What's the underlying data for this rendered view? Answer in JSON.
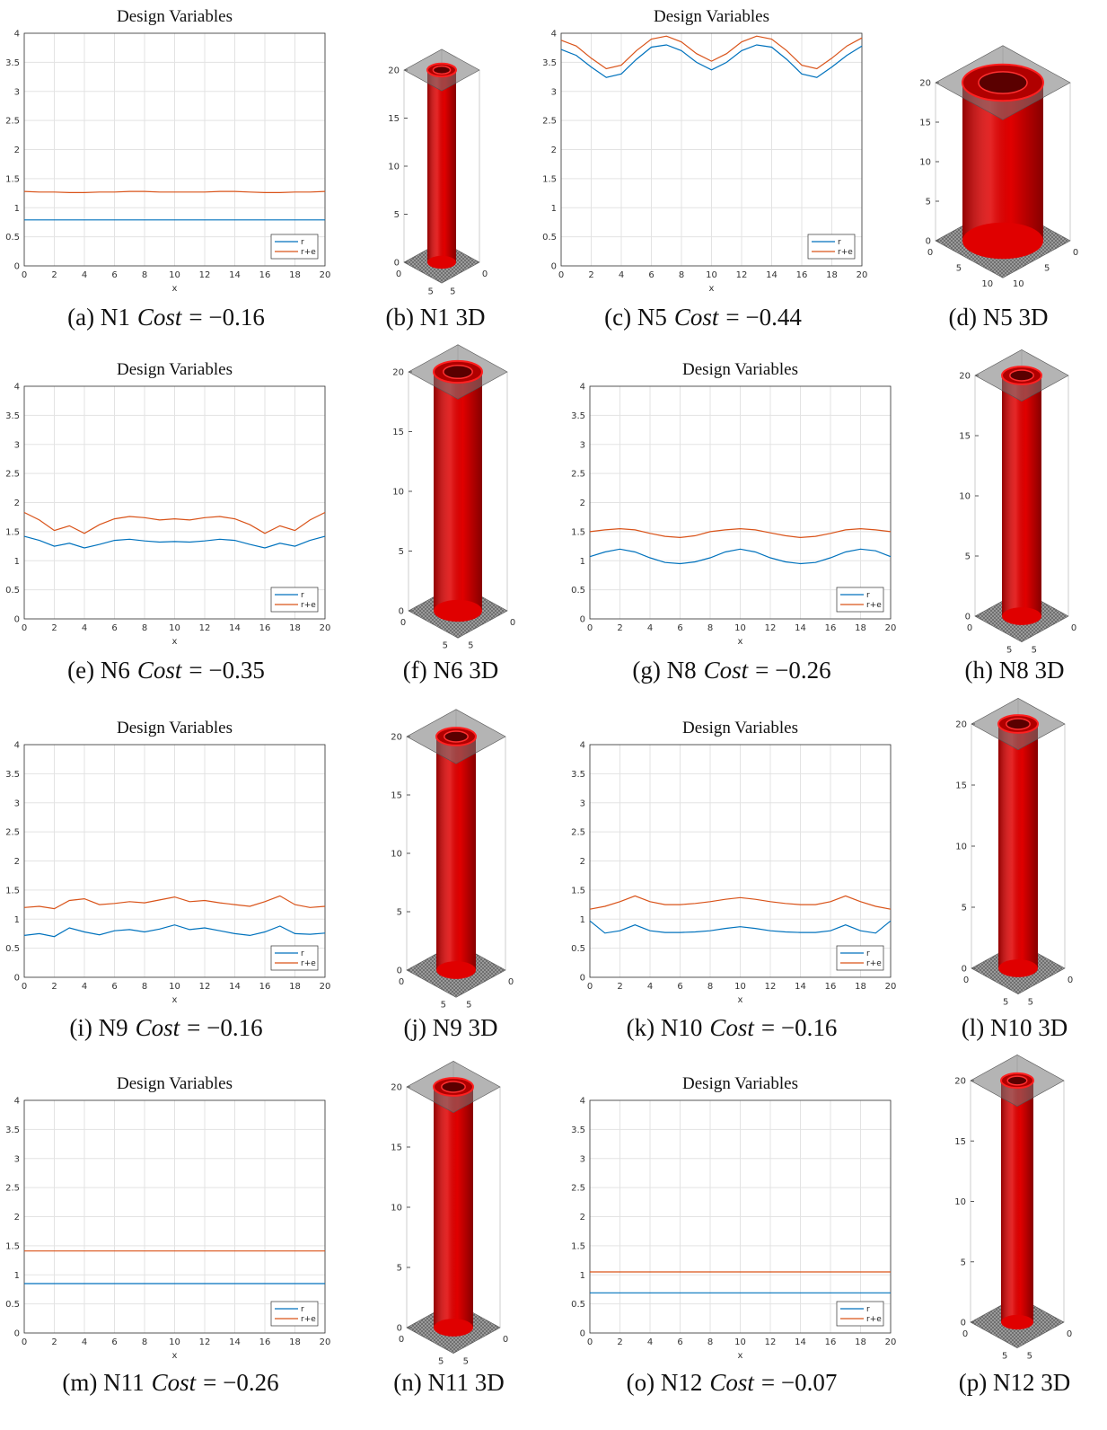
{
  "chart_data": [
    {
      "type": "line",
      "title": "Design Variables",
      "xlabel": "x",
      "caption_prefix": "(a) N1",
      "caption_var": "Cost",
      "caption_value": "= −0.16",
      "x": [
        0,
        1,
        2,
        3,
        4,
        5,
        6,
        7,
        8,
        9,
        10,
        11,
        12,
        13,
        14,
        15,
        16,
        17,
        18,
        19,
        20
      ],
      "series": [
        {
          "name": "r",
          "color": "#0072bd",
          "values": [
            0.79,
            0.79,
            0.79,
            0.79,
            0.79,
            0.79,
            0.79,
            0.79,
            0.79,
            0.79,
            0.79,
            0.79,
            0.79,
            0.79,
            0.79,
            0.79,
            0.79,
            0.79,
            0.79,
            0.79,
            0.79
          ]
        },
        {
          "name": "r+e",
          "color": "#d95319",
          "values": [
            1.28,
            1.27,
            1.27,
            1.26,
            1.26,
            1.27,
            1.27,
            1.28,
            1.28,
            1.27,
            1.27,
            1.27,
            1.27,
            1.28,
            1.28,
            1.27,
            1.26,
            1.26,
            1.27,
            1.27,
            1.28
          ]
        }
      ],
      "xlim": [
        0,
        20
      ],
      "ylim": [
        0,
        4
      ],
      "xticks": [
        0,
        2,
        4,
        6,
        8,
        10,
        12,
        14,
        16,
        18,
        20
      ],
      "yticks": [
        0,
        0.5,
        1,
        1.5,
        2,
        2.5,
        3,
        3.5,
        4
      ],
      "grid": true,
      "legend": "lower right"
    },
    {
      "type": "line",
      "title": "Design Variables",
      "xlabel": "x",
      "caption_prefix": "(c) N5",
      "caption_var": "Cost",
      "caption_value": "= −0.44",
      "x": [
        0,
        1,
        2,
        3,
        4,
        5,
        6,
        7,
        8,
        9,
        10,
        11,
        12,
        13,
        14,
        15,
        16,
        17,
        18,
        19,
        20
      ],
      "series": [
        {
          "name": "r",
          "color": "#0072bd",
          "values": [
            3.72,
            3.62,
            3.42,
            3.24,
            3.3,
            3.55,
            3.76,
            3.8,
            3.7,
            3.5,
            3.37,
            3.5,
            3.7,
            3.8,
            3.76,
            3.55,
            3.3,
            3.24,
            3.42,
            3.62,
            3.78
          ]
        },
        {
          "name": "r+e",
          "color": "#d95319",
          "values": [
            3.88,
            3.78,
            3.57,
            3.39,
            3.45,
            3.7,
            3.9,
            3.95,
            3.85,
            3.65,
            3.52,
            3.65,
            3.85,
            3.95,
            3.9,
            3.7,
            3.45,
            3.39,
            3.57,
            3.78,
            3.92
          ]
        }
      ],
      "xlim": [
        0,
        20
      ],
      "ylim": [
        0,
        4
      ],
      "xticks": [
        0,
        2,
        4,
        6,
        8,
        10,
        12,
        14,
        16,
        18,
        20
      ],
      "yticks": [
        0,
        0.5,
        1,
        1.5,
        2,
        2.5,
        3,
        3.5,
        4
      ],
      "grid": true,
      "legend": "lower right"
    },
    {
      "type": "line",
      "title": "Design Variables",
      "xlabel": "x",
      "caption_prefix": "(e) N6",
      "caption_var": "Cost",
      "caption_value": "= −0.35",
      "x": [
        0,
        1,
        2,
        3,
        4,
        5,
        6,
        7,
        8,
        9,
        10,
        11,
        12,
        13,
        14,
        15,
        16,
        17,
        18,
        19,
        20
      ],
      "series": [
        {
          "name": "r",
          "color": "#0072bd",
          "values": [
            1.42,
            1.35,
            1.25,
            1.3,
            1.22,
            1.28,
            1.35,
            1.37,
            1.34,
            1.32,
            1.33,
            1.32,
            1.34,
            1.37,
            1.35,
            1.28,
            1.22,
            1.3,
            1.25,
            1.35,
            1.42
          ]
        },
        {
          "name": "r+e",
          "color": "#d95319",
          "values": [
            1.83,
            1.7,
            1.52,
            1.6,
            1.47,
            1.62,
            1.72,
            1.76,
            1.74,
            1.7,
            1.72,
            1.7,
            1.74,
            1.76,
            1.72,
            1.62,
            1.47,
            1.6,
            1.52,
            1.7,
            1.83
          ]
        }
      ],
      "xlim": [
        0,
        20
      ],
      "ylim": [
        0,
        4
      ],
      "xticks": [
        0,
        2,
        4,
        6,
        8,
        10,
        12,
        14,
        16,
        18,
        20
      ],
      "yticks": [
        0,
        0.5,
        1,
        1.5,
        2,
        2.5,
        3,
        3.5,
        4
      ],
      "grid": true,
      "legend": "lower right"
    },
    {
      "type": "line",
      "title": "Design Variables",
      "xlabel": "x",
      "caption_prefix": "(g) N8",
      "caption_var": "Cost",
      "caption_value": "= −0.26",
      "x": [
        0,
        1,
        2,
        3,
        4,
        5,
        6,
        7,
        8,
        9,
        10,
        11,
        12,
        13,
        14,
        15,
        16,
        17,
        18,
        19,
        20
      ],
      "series": [
        {
          "name": "r",
          "color": "#0072bd",
          "values": [
            1.07,
            1.15,
            1.2,
            1.15,
            1.05,
            0.97,
            0.95,
            0.98,
            1.05,
            1.15,
            1.2,
            1.15,
            1.05,
            0.98,
            0.95,
            0.97,
            1.05,
            1.15,
            1.2,
            1.17,
            1.07
          ]
        },
        {
          "name": "r+e",
          "color": "#d95319",
          "values": [
            1.5,
            1.53,
            1.55,
            1.53,
            1.47,
            1.42,
            1.4,
            1.43,
            1.5,
            1.53,
            1.55,
            1.53,
            1.48,
            1.43,
            1.4,
            1.42,
            1.47,
            1.53,
            1.55,
            1.53,
            1.5
          ]
        }
      ],
      "xlim": [
        0,
        20
      ],
      "ylim": [
        0,
        4
      ],
      "xticks": [
        0,
        2,
        4,
        6,
        8,
        10,
        12,
        14,
        16,
        18,
        20
      ],
      "yticks": [
        0,
        0.5,
        1,
        1.5,
        2,
        2.5,
        3,
        3.5,
        4
      ],
      "grid": true,
      "legend": "lower right"
    },
    {
      "type": "line",
      "title": "Design Variables",
      "xlabel": "x",
      "caption_prefix": "(i) N9",
      "caption_var": "Cost",
      "caption_value": "= −0.16",
      "x": [
        0,
        1,
        2,
        3,
        4,
        5,
        6,
        7,
        8,
        9,
        10,
        11,
        12,
        13,
        14,
        15,
        16,
        17,
        18,
        19,
        20
      ],
      "series": [
        {
          "name": "r",
          "color": "#0072bd",
          "values": [
            0.72,
            0.75,
            0.7,
            0.85,
            0.78,
            0.73,
            0.8,
            0.82,
            0.78,
            0.83,
            0.9,
            0.82,
            0.85,
            0.8,
            0.75,
            0.72,
            0.78,
            0.88,
            0.75,
            0.74,
            0.76
          ]
        },
        {
          "name": "r+e",
          "color": "#d95319",
          "values": [
            1.2,
            1.22,
            1.18,
            1.32,
            1.35,
            1.25,
            1.27,
            1.3,
            1.28,
            1.33,
            1.38,
            1.3,
            1.32,
            1.28,
            1.25,
            1.22,
            1.3,
            1.4,
            1.25,
            1.2,
            1.22
          ]
        }
      ],
      "xlim": [
        0,
        20
      ],
      "ylim": [
        0,
        4
      ],
      "xticks": [
        0,
        2,
        4,
        6,
        8,
        10,
        12,
        14,
        16,
        18,
        20
      ],
      "yticks": [
        0,
        0.5,
        1,
        1.5,
        2,
        2.5,
        3,
        3.5,
        4
      ],
      "grid": true,
      "legend": "lower right"
    },
    {
      "type": "line",
      "title": "Design Variables",
      "xlabel": "x",
      "caption_prefix": "(k) N10",
      "caption_var": "Cost",
      "caption_value": "= −0.16",
      "x": [
        0,
        1,
        2,
        3,
        4,
        5,
        6,
        7,
        8,
        9,
        10,
        11,
        12,
        13,
        14,
        15,
        16,
        17,
        18,
        19,
        20
      ],
      "series": [
        {
          "name": "r",
          "color": "#0072bd",
          "values": [
            0.97,
            0.76,
            0.8,
            0.9,
            0.8,
            0.77,
            0.77,
            0.78,
            0.8,
            0.84,
            0.87,
            0.84,
            0.8,
            0.78,
            0.77,
            0.77,
            0.8,
            0.9,
            0.8,
            0.76,
            0.97
          ]
        },
        {
          "name": "r+e",
          "color": "#d95319",
          "values": [
            1.17,
            1.22,
            1.3,
            1.4,
            1.3,
            1.25,
            1.25,
            1.27,
            1.3,
            1.34,
            1.37,
            1.34,
            1.3,
            1.27,
            1.25,
            1.25,
            1.3,
            1.4,
            1.3,
            1.22,
            1.17
          ]
        }
      ],
      "xlim": [
        0,
        20
      ],
      "ylim": [
        0,
        4
      ],
      "xticks": [
        0,
        2,
        4,
        6,
        8,
        10,
        12,
        14,
        16,
        18,
        20
      ],
      "yticks": [
        0,
        0.5,
        1,
        1.5,
        2,
        2.5,
        3,
        3.5,
        4
      ],
      "grid": true,
      "legend": "lower right"
    },
    {
      "type": "line",
      "title": "Design Variables",
      "xlabel": "x",
      "caption_prefix": "(m) N11",
      "caption_var": "Cost",
      "caption_value": "= −0.26",
      "x": [
        0,
        1,
        2,
        3,
        4,
        5,
        6,
        7,
        8,
        9,
        10,
        11,
        12,
        13,
        14,
        15,
        16,
        17,
        18,
        19,
        20
      ],
      "series": [
        {
          "name": "r",
          "color": "#0072bd",
          "values": [
            0.85,
            0.85,
            0.85,
            0.85,
            0.85,
            0.85,
            0.85,
            0.85,
            0.85,
            0.85,
            0.85,
            0.85,
            0.85,
            0.85,
            0.85,
            0.85,
            0.85,
            0.85,
            0.85,
            0.85,
            0.85
          ]
        },
        {
          "name": "r+e",
          "color": "#d95319",
          "values": [
            1.41,
            1.41,
            1.41,
            1.41,
            1.41,
            1.41,
            1.41,
            1.41,
            1.41,
            1.41,
            1.41,
            1.41,
            1.41,
            1.41,
            1.41,
            1.41,
            1.41,
            1.41,
            1.41,
            1.41,
            1.41
          ]
        }
      ],
      "xlim": [
        0,
        20
      ],
      "ylim": [
        0,
        4
      ],
      "xticks": [
        0,
        2,
        4,
        6,
        8,
        10,
        12,
        14,
        16,
        18,
        20
      ],
      "yticks": [
        0,
        0.5,
        1,
        1.5,
        2,
        2.5,
        3,
        3.5,
        4
      ],
      "grid": true,
      "legend": "lower right"
    },
    {
      "type": "line",
      "title": "Design Variables",
      "xlabel": "x",
      "caption_prefix": "(o) N12",
      "caption_var": "Cost",
      "caption_value": "= −0.07",
      "x": [
        0,
        1,
        2,
        3,
        4,
        5,
        6,
        7,
        8,
        9,
        10,
        11,
        12,
        13,
        14,
        15,
        16,
        17,
        18,
        19,
        20
      ],
      "series": [
        {
          "name": "r",
          "color": "#0072bd",
          "values": [
            0.69,
            0.69,
            0.69,
            0.69,
            0.69,
            0.69,
            0.69,
            0.69,
            0.69,
            0.69,
            0.69,
            0.69,
            0.69,
            0.69,
            0.69,
            0.69,
            0.69,
            0.69,
            0.69,
            0.69,
            0.69
          ]
        },
        {
          "name": "r+e",
          "color": "#d95319",
          "values": [
            1.05,
            1.05,
            1.05,
            1.05,
            1.05,
            1.05,
            1.05,
            1.05,
            1.05,
            1.05,
            1.05,
            1.05,
            1.05,
            1.05,
            1.05,
            1.05,
            1.05,
            1.05,
            1.05,
            1.05,
            1.05
          ]
        }
      ],
      "xlim": [
        0,
        20
      ],
      "ylim": [
        0,
        4
      ],
      "xticks": [
        0,
        2,
        4,
        6,
        8,
        10,
        12,
        14,
        16,
        18,
        20
      ],
      "yticks": [
        0,
        0.5,
        1,
        1.5,
        2,
        2.5,
        3,
        3.5,
        4
      ],
      "grid": true,
      "legend": "lower right"
    }
  ],
  "renders": [
    {
      "caption": "(b) N1 3D",
      "zlim": [
        0,
        20
      ],
      "zticks": [
        0,
        5,
        10,
        15,
        20
      ],
      "base_ticks_left": [
        0,
        5
      ],
      "base_ticks_right": [
        5,
        0
      ],
      "color": "#e00000"
    },
    {
      "caption": "(d) N5 3D",
      "zlim": [
        0,
        20
      ],
      "zticks": [
        0,
        5,
        10,
        15,
        20
      ],
      "base_ticks_left": [
        0,
        5,
        10
      ],
      "base_ticks_right": [
        10,
        5,
        0
      ],
      "color": "#e00000"
    },
    {
      "caption": "(f) N6 3D",
      "zlim": [
        0,
        20
      ],
      "zticks": [
        0,
        5,
        10,
        15,
        20
      ],
      "base_ticks_left": [
        0,
        5
      ],
      "base_ticks_right": [
        5,
        0
      ],
      "color": "#e00000"
    },
    {
      "caption": "(h) N8 3D",
      "zlim": [
        0,
        20
      ],
      "zticks": [
        0,
        5,
        10,
        15,
        20
      ],
      "base_ticks_left": [
        0,
        5
      ],
      "base_ticks_right": [
        5,
        0
      ],
      "color": "#e00000"
    },
    {
      "caption": "(j) N9 3D",
      "zlim": [
        0,
        20
      ],
      "zticks": [
        0,
        5,
        10,
        15,
        20
      ],
      "base_ticks_left": [
        0,
        5
      ],
      "base_ticks_right": [
        5,
        0
      ],
      "color": "#e00000"
    },
    {
      "caption": "(l) N10 3D",
      "zlim": [
        0,
        20
      ],
      "zticks": [
        0,
        5,
        10,
        15,
        20
      ],
      "base_ticks_left": [
        0,
        5
      ],
      "base_ticks_right": [
        5,
        0
      ],
      "color": "#e00000"
    },
    {
      "caption": "(n) N11 3D",
      "zlim": [
        0,
        20
      ],
      "zticks": [
        0,
        5,
        10,
        15,
        20
      ],
      "base_ticks_left": [
        0,
        5
      ],
      "base_ticks_right": [
        5,
        0
      ],
      "color": "#e00000"
    },
    {
      "caption": "(p) N12 3D",
      "zlim": [
        0,
        20
      ],
      "zticks": [
        0,
        5,
        10,
        15,
        20
      ],
      "base_ticks_left": [
        0,
        5
      ],
      "base_ticks_right": [
        5,
        0
      ],
      "color": "#e00000"
    }
  ]
}
